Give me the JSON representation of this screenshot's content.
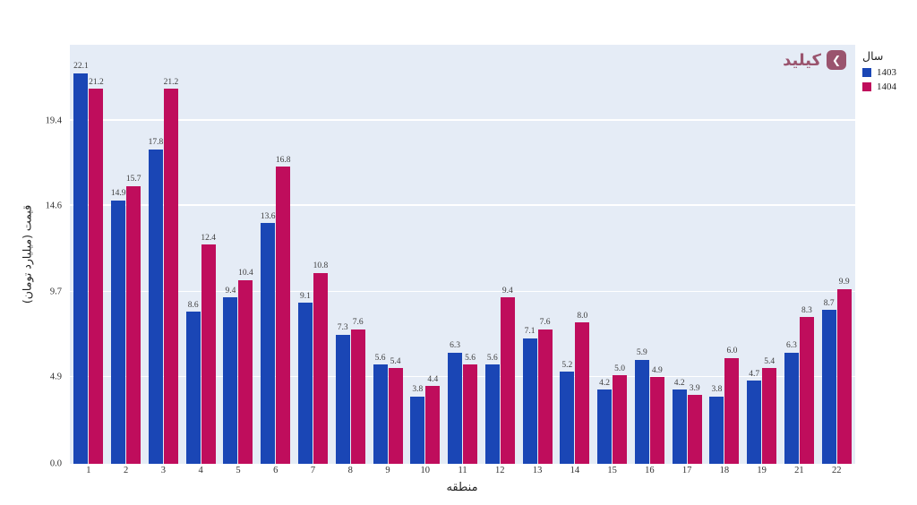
{
  "page": {
    "background": "#ffffff"
  },
  "logo": {
    "text": "کیلید",
    "color": "#9a546e",
    "icon": "kilid-chevron-icon"
  },
  "legend": {
    "title": "سال",
    "items": [
      {
        "label": "1403",
        "color": "#1a46b5"
      },
      {
        "label": "1404",
        "color": "#bf0d5c"
      }
    ]
  },
  "chart_data": {
    "type": "bar",
    "title": "",
    "xlabel": "منطقه",
    "ylabel": "قیمت (میلیارد تومان)",
    "categories": [
      "1",
      "2",
      "3",
      "4",
      "5",
      "6",
      "7",
      "8",
      "9",
      "10",
      "11",
      "12",
      "13",
      "14",
      "15",
      "16",
      "17",
      "18",
      "19",
      "21",
      "22"
    ],
    "series": [
      {
        "name": "1403",
        "color": "#1a46b5",
        "values": [
          22.1,
          14.9,
          17.8,
          8.6,
          9.4,
          13.6,
          9.1,
          7.3,
          5.6,
          3.8,
          6.3,
          5.6,
          7.1,
          5.2,
          4.2,
          5.9,
          4.2,
          3.8,
          4.7,
          6.3,
          8.7
        ]
      },
      {
        "name": "1404",
        "color": "#bf0d5c",
        "values": [
          21.2,
          15.7,
          21.2,
          12.4,
          10.4,
          16.8,
          10.8,
          7.6,
          5.4,
          4.4,
          5.6,
          9.4,
          7.6,
          8.0,
          5.0,
          4.9,
          3.9,
          6.0,
          5.4,
          8.3,
          9.9
        ]
      }
    ],
    "ylim": [
      0,
      23.7
    ],
    "yticks": [
      {
        "value": 0.0,
        "label": "0.0"
      },
      {
        "value": 4.9,
        "label": "4.9"
      },
      {
        "value": 9.7,
        "label": "9.7"
      },
      {
        "value": 14.6,
        "label": "14.6"
      },
      {
        "value": 19.4,
        "label": "19.4"
      }
    ],
    "grid": true,
    "bar_labels": true,
    "legend_position": "right",
    "plot_bg": "#e5ecf6",
    "grid_color": "#ffffff",
    "label_color": "#3d3d3d"
  }
}
